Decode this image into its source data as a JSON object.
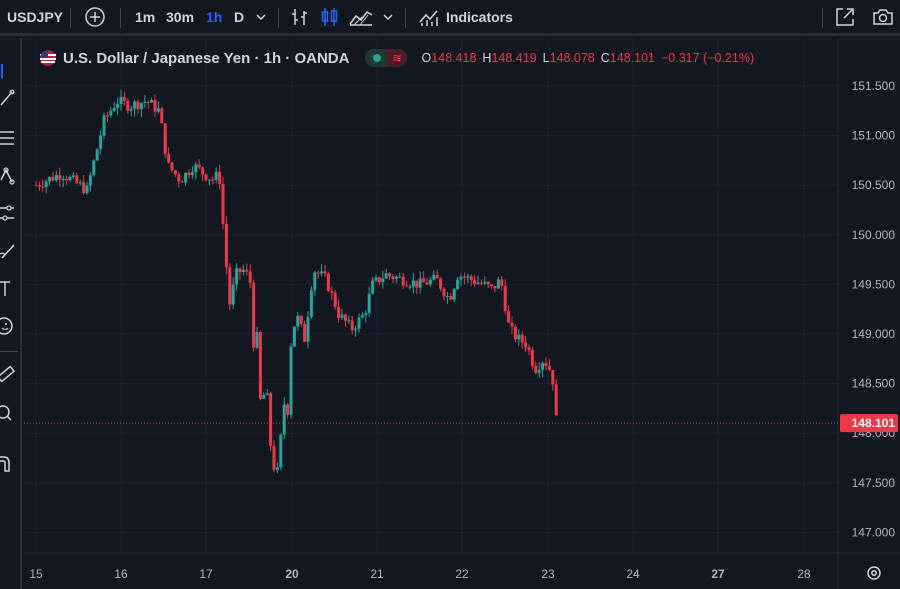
{
  "toolbar": {
    "symbol": "USDJPY",
    "intervals": [
      "1m",
      "30m",
      "1h",
      "D"
    ],
    "active_interval": "1h",
    "indicators_label": "Indicators"
  },
  "legend": {
    "title": "U.S. Dollar / Japanese Yen · 1h · OANDA",
    "o_label": "O",
    "o_value": "148.418",
    "h_label": "H",
    "h_value": "148.419",
    "l_label": "L",
    "l_value": "148.078",
    "c_label": "C",
    "c_value": "148.101",
    "change": "−0.317 (−0.21%)"
  },
  "colors": {
    "up": "#26a69a",
    "down": "#f23645",
    "bg": "#131722",
    "grid": "#1e222d"
  },
  "chart_data": {
    "type": "candlestick",
    "y_ticks": [
      "151.500",
      "151.000",
      "150.500",
      "150.000",
      "149.500",
      "149.000",
      "148.500",
      "148.000",
      "147.500",
      "147.000"
    ],
    "x_ticks": [
      "15",
      "16",
      "17",
      "20",
      "21",
      "22",
      "23",
      "24",
      "27",
      "28"
    ],
    "bold_x_ticks": [
      "20",
      "27"
    ],
    "last_price": "148.101",
    "last_price_value": 148.101,
    "ylim": [
      146.9,
      151.7
    ],
    "close_path": [
      [
        15.0,
        150.5
      ],
      [
        15.3,
        150.62
      ],
      [
        15.6,
        150.45
      ],
      [
        15.8,
        151.15
      ],
      [
        15.95,
        151.35
      ],
      [
        16.1,
        151.3
      ],
      [
        16.3,
        151.35
      ],
      [
        16.45,
        151.25
      ],
      [
        16.55,
        150.7
      ],
      [
        16.7,
        150.55
      ],
      [
        16.85,
        150.7
      ],
      [
        17.0,
        150.6
      ],
      [
        17.2,
        150.55
      ],
      [
        17.3,
        150.65
      ],
      [
        17.45,
        149.8
      ],
      [
        17.55,
        149.3
      ],
      [
        17.7,
        149.6
      ],
      [
        17.85,
        149.65
      ],
      [
        17.95,
        149.6
      ],
      [
        18.0,
        149.95
      ],
      [
        18.05,
        149.55
      ],
      [
        18.2,
        148.9
      ],
      [
        18.35,
        149.05
      ],
      [
        18.45,
        148.65
      ],
      [
        18.5,
        148.25
      ],
      [
        18.6,
        148.5
      ],
      [
        18.75,
        148.3
      ],
      [
        18.85,
        148.35
      ],
      [
        19.0,
        147.9
      ],
      [
        19.1,
        147.6
      ],
      [
        19.25,
        147.75
      ],
      [
        19.35,
        147.55
      ],
      [
        19.45,
        147.8
      ],
      [
        19.55,
        148.3
      ],
      [
        19.65,
        148.3
      ],
      [
        19.75,
        148.1
      ],
      [
        19.85,
        148.4
      ],
      [
        19.95,
        148.9
      ],
      [
        20.05,
        149.2
      ],
      [
        20.15,
        148.95
      ],
      [
        20.25,
        149.65
      ],
      [
        20.4,
        149.55
      ],
      [
        20.55,
        149.2
      ],
      [
        20.7,
        149.05
      ],
      [
        20.85,
        149.2
      ],
      [
        20.95,
        149.5
      ],
      [
        21.1,
        149.6
      ],
      [
        21.3,
        149.55
      ],
      [
        21.5,
        149.5
      ],
      [
        21.7,
        149.55
      ],
      [
        21.85,
        149.35
      ],
      [
        21.95,
        149.6
      ],
      [
        22.1,
        149.55
      ],
      [
        22.25,
        149.5
      ],
      [
        22.35,
        149.45
      ],
      [
        22.45,
        149.55
      ],
      [
        22.55,
        149.05
      ],
      [
        22.65,
        148.95
      ],
      [
        22.75,
        148.9
      ],
      [
        22.85,
        148.65
      ],
      [
        22.95,
        148.75
      ],
      [
        23.05,
        148.6
      ],
      [
        23.1,
        148.1
      ]
    ]
  }
}
